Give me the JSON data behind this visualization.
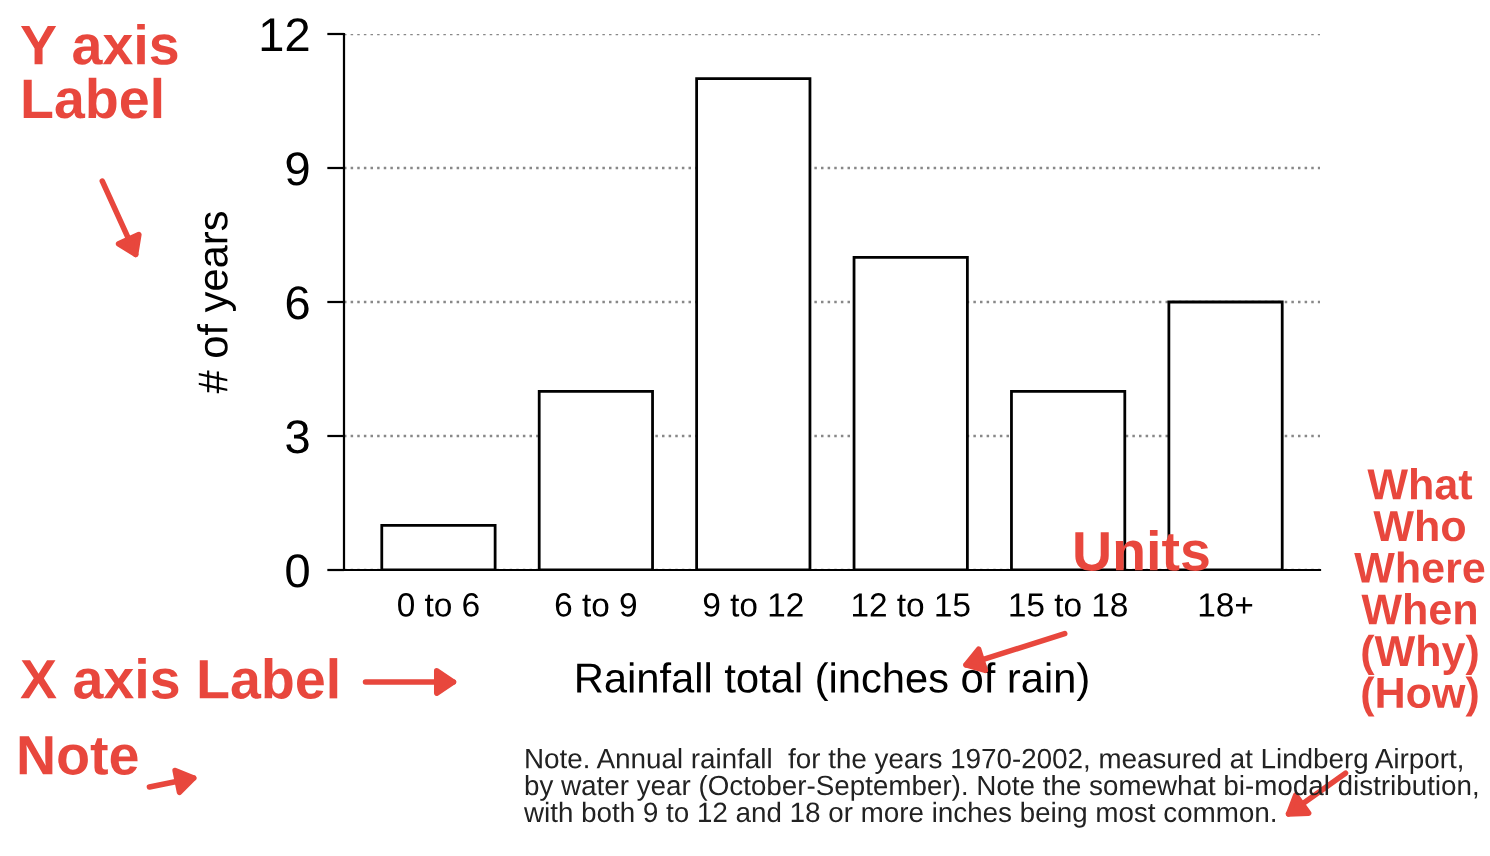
{
  "chart_data": {
    "type": "bar",
    "xlabel": "Rainfall total (inches of rain)",
    "ylabel": "# of years",
    "categories": [
      "0 to 6",
      "6 to 9",
      "9 to 12",
      "12 to 15",
      "15 to 18",
      "18+"
    ],
    "values": [
      1,
      4,
      11,
      7,
      4,
      6
    ],
    "color": "#ffffff",
    "ylim": [
      0,
      12
    ],
    "yticks": [
      0,
      3,
      6,
      9,
      12
    ],
    "grid": "y",
    "annotations": [
      "Y axis\nLabel",
      "X axis Label",
      "Units",
      "Note",
      "What\nWho\nWhere\nWhen\n(Why)\n(How)",
      "Note. Annual rainfall  for the years 1970-2002, measured at Lindberg Airport,\nby water year (October-September). Note the somewhat bi-modal distribution,\nwith both 9 to 12 and 18 or more inches being most common."
    ]
  }
}
